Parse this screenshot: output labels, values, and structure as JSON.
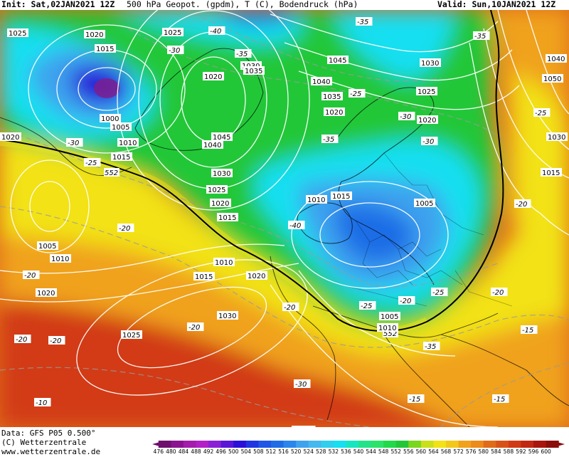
{
  "header": {
    "init": "Init: Sat,02JAN2021 12Z",
    "variable": "500 hPa Geopot. (gpdm), T (C), Bodendruck (hPa)",
    "valid": "Valid: Sun,10JAN2021 12Z"
  },
  "footer": {
    "data_source": "Data: GFS P05 0.500°",
    "copyright": "(C) Wetterzentrale",
    "url": "www.wetterzentrale.de"
  },
  "colors": {
    "purple": "#7a1f8f",
    "deep_blue": "#2a10d8",
    "blue": "#1f6de6",
    "light_blue": "#3ea2ee",
    "cyan": "#16dff1",
    "green_light": "#2ce36a",
    "green": "#22c738",
    "yellow": "#f2e216",
    "orange": "#f0a21c",
    "dark_orange": "#e06b19",
    "red": "#d23a14",
    "dark_red": "#a8160e"
  },
  "colorbar": {
    "labels": [
      "476",
      "480",
      "484",
      "488",
      "492",
      "496",
      "500",
      "504",
      "508",
      "512",
      "516",
      "520",
      "524",
      "528",
      "532",
      "536",
      "540",
      "544",
      "548",
      "552",
      "556",
      "560",
      "564",
      "568",
      "572",
      "576",
      "580",
      "584",
      "588",
      "592",
      "596",
      "600"
    ],
    "colors": [
      "#6e0f6e",
      "#8a1490",
      "#a31cab",
      "#b21fc6",
      "#8a1fd6",
      "#5a16d6",
      "#2a10d8",
      "#1f36e2",
      "#1f56e6",
      "#1f6de6",
      "#2a86ea",
      "#3ea2ee",
      "#44b8ef",
      "#2fcfee",
      "#16dff1",
      "#16e6c0",
      "#22e38a",
      "#2ce36a",
      "#22d94a",
      "#22c738",
      "#7bd61e",
      "#c9e01a",
      "#f2e216",
      "#f2c81a",
      "#f0a21c",
      "#ec8a1a",
      "#e06b19",
      "#d85218",
      "#d23a14",
      "#c02812",
      "#a8160e",
      "#8c0e0a"
    ]
  },
  "map": {
    "contour_552": "552",
    "pressure_labels": [
      "1020",
      "1015",
      "1025",
      "1025",
      "1020",
      "1030",
      "1035",
      "1045",
      "1030",
      "1040",
      "1025",
      "1050",
      "1000",
      "1005",
      "1040",
      "1035",
      "1045",
      "1040",
      "1020",
      "1020",
      "1020",
      "1010",
      "1015",
      "1030",
      "1030",
      "1025",
      "1015",
      "1010",
      "1015",
      "1020",
      "1015",
      "1005",
      "1005",
      "1010",
      "1010",
      "1015",
      "1020",
      "1020",
      "1030",
      "1025",
      "1005",
      "1010"
    ],
    "temperature_labels": [
      "-30",
      "-35",
      "-40",
      "-35",
      "-35",
      "-30",
      "-25",
      "-30",
      "-25",
      "-25",
      "-35",
      "-30",
      "-20",
      "-40",
      "-20",
      "-20",
      "-20",
      "-25",
      "-25",
      "-20",
      "-20",
      "-20",
      "-35",
      "-30",
      "-20",
      "-20",
      "-15",
      "-15",
      "-10",
      "-15",
      "-10",
      "-20"
    ]
  }
}
